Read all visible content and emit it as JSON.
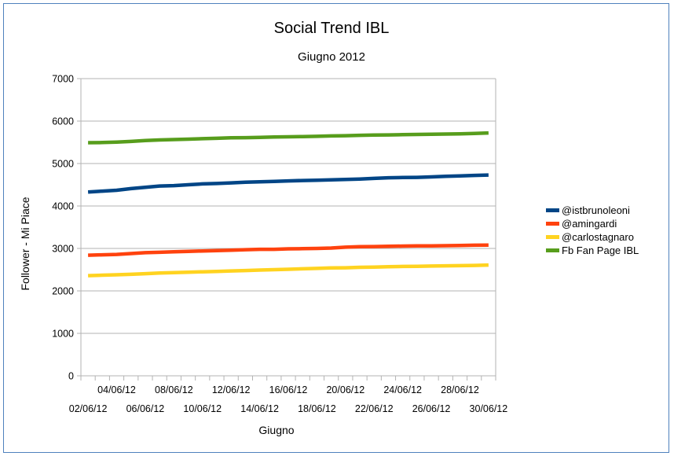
{
  "chart_data": {
    "type": "line",
    "title": "Social Trend IBL",
    "subtitle": "Giugno 2012",
    "xlabel": "Giugno",
    "ylabel": "Follower - Mi Piace",
    "ylim": [
      0,
      7000
    ],
    "yticks": [
      0,
      1000,
      2000,
      3000,
      4000,
      5000,
      6000,
      7000
    ],
    "grid": true,
    "legend_position": "right",
    "categories": [
      "02/06/12",
      "03/06/12",
      "04/06/12",
      "05/06/12",
      "06/06/12",
      "07/06/12",
      "08/06/12",
      "09/06/12",
      "10/06/12",
      "11/06/12",
      "12/06/12",
      "13/06/12",
      "14/06/12",
      "15/06/12",
      "16/06/12",
      "17/06/12",
      "18/06/12",
      "19/06/12",
      "20/06/12",
      "21/06/12",
      "22/06/12",
      "23/06/12",
      "24/06/12",
      "25/06/12",
      "26/06/12",
      "27/06/12",
      "28/06/12",
      "29/06/12",
      "30/06/12"
    ],
    "x_tick_labels_lower": [
      "02/06/12",
      "06/06/12",
      "10/06/12",
      "14/06/12",
      "18/06/12",
      "22/06/12",
      "26/06/12",
      "30/06/12"
    ],
    "x_tick_labels_upper": [
      "04/06/12",
      "08/06/12",
      "12/06/12",
      "16/06/12",
      "20/06/12",
      "24/06/12",
      "28/06/12"
    ],
    "series": [
      {
        "name": "@istbrunoleoni",
        "color": "#004586",
        "values": [
          4330,
          4350,
          4370,
          4410,
          4440,
          4470,
          4480,
          4500,
          4520,
          4530,
          4545,
          4560,
          4570,
          4580,
          4590,
          4600,
          4605,
          4615,
          4625,
          4635,
          4650,
          4665,
          4670,
          4675,
          4685,
          4700,
          4710,
          4720,
          4730
        ]
      },
      {
        "name": "@amingardi",
        "color": "#ff420e",
        "values": [
          2840,
          2850,
          2860,
          2880,
          2900,
          2910,
          2920,
          2930,
          2940,
          2950,
          2960,
          2970,
          2980,
          2980,
          2990,
          2995,
          3000,
          3010,
          3030,
          3040,
          3045,
          3050,
          3055,
          3060,
          3060,
          3065,
          3070,
          3075,
          3080
        ]
      },
      {
        "name": "@carlostagnaro",
        "color": "#ffd320",
        "values": [
          2360,
          2370,
          2380,
          2390,
          2405,
          2420,
          2430,
          2440,
          2450,
          2460,
          2470,
          2480,
          2490,
          2500,
          2510,
          2520,
          2530,
          2540,
          2545,
          2555,
          2560,
          2570,
          2575,
          2580,
          2585,
          2590,
          2595,
          2600,
          2610
        ]
      },
      {
        "name": "Fb Fan Page IBL",
        "color": "#579d1c",
        "values": [
          5490,
          5495,
          5505,
          5520,
          5540,
          5555,
          5565,
          5575,
          5585,
          5595,
          5605,
          5610,
          5615,
          5625,
          5630,
          5635,
          5640,
          5650,
          5655,
          5665,
          5670,
          5675,
          5680,
          5685,
          5690,
          5695,
          5700,
          5710,
          5720
        ]
      }
    ]
  }
}
